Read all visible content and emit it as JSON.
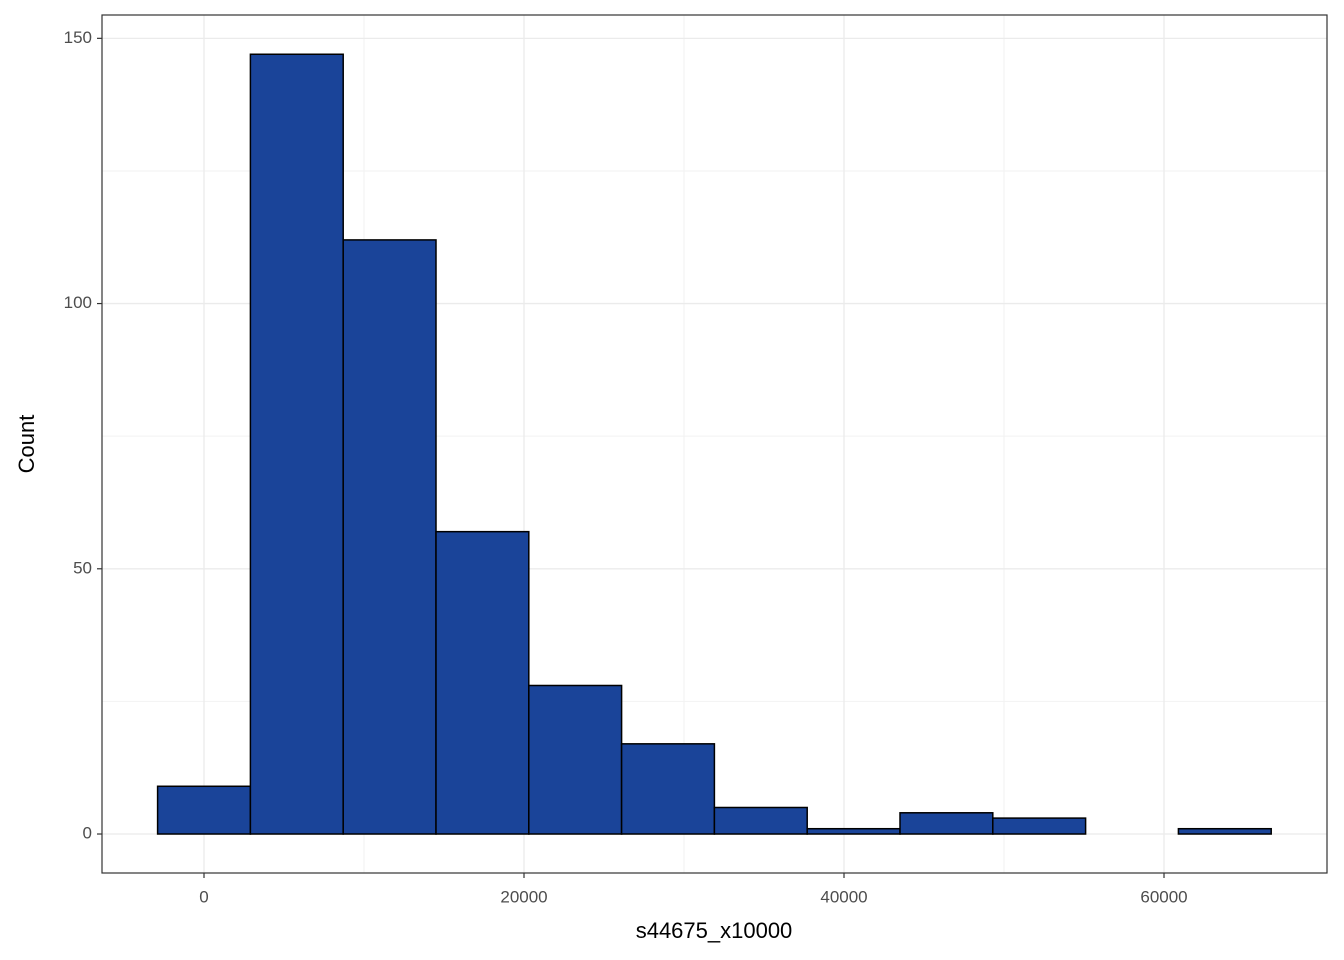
{
  "chart_data": {
    "type": "histogram",
    "x_label": "s44675_x10000",
    "y_label": "Count",
    "bins": [
      -2900,
      2900,
      8700,
      14500,
      20300,
      26100,
      31900,
      37700,
      43500,
      49300,
      55100,
      60900,
      66700
    ],
    "values": [
      9,
      147,
      112,
      57,
      28,
      17,
      5,
      1,
      4,
      3,
      0,
      1
    ],
    "color": "#1a4499",
    "edge_color": "#000000",
    "xlim": [
      -6375,
      70187
    ],
    "ylim": [
      -7.35,
      154.4
    ],
    "xticks": [
      0,
      20000,
      40000,
      60000
    ],
    "yticks": [
      0,
      50,
      100,
      150
    ],
    "grid": true,
    "minor_grid": true
  }
}
